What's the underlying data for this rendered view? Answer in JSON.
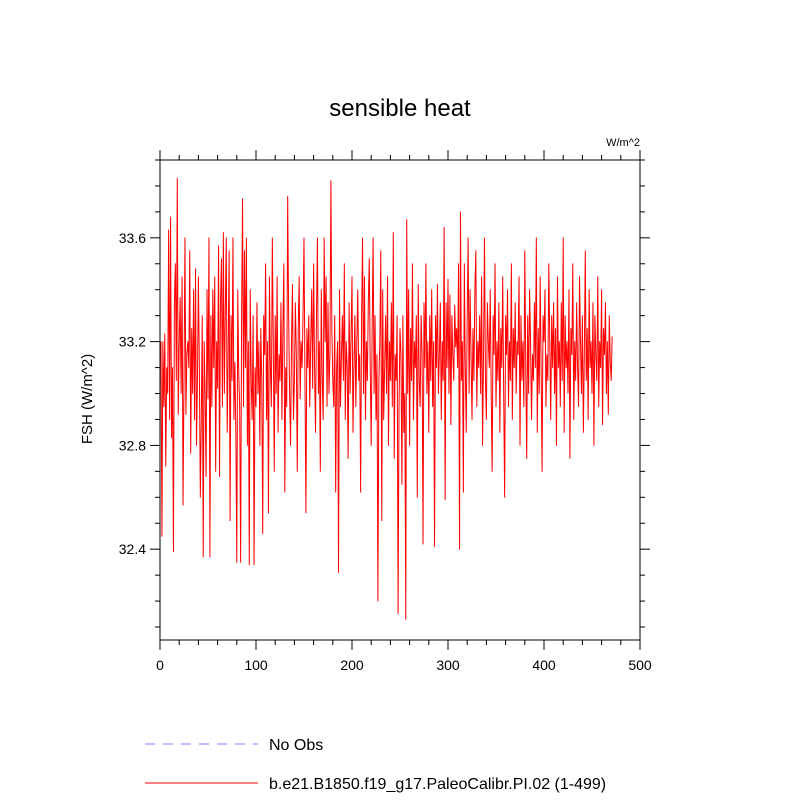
{
  "chart_data": {
    "type": "line",
    "title": "sensible heat",
    "units": "W/m^2",
    "xlabel": "",
    "ylabel": "FSH  (W/m^2)",
    "xlim": [
      0,
      500
    ],
    "ylim": [
      32.05,
      33.9
    ],
    "x_ticks": [
      0,
      100,
      200,
      300,
      400,
      500
    ],
    "x_tick_labels": [
      "0",
      "100",
      "200",
      "300",
      "400",
      "500"
    ],
    "y_ticks": [
      32.4,
      32.8,
      33.2,
      33.6
    ],
    "y_tick_labels": [
      "32.4",
      "32.8",
      "33.2",
      "33.6"
    ],
    "grid": false,
    "legend_position": "bottom",
    "legend": [
      {
        "label": "No Obs",
        "color": "#8080ff",
        "style": "dashed"
      },
      {
        "label": "b.e21.B1850.f19_g17.PaleoCalibr.PI.02 (1-499)",
        "color": "#ff0000",
        "style": "solid"
      }
    ],
    "series": [
      {
        "name": "b.e21.B1850.f19_g17.PaleoCalibr.PI.02 (1-499)",
        "color": "#ff0000",
        "x_start": 1,
        "x_step": 1,
        "values": [
          33.2,
          32.45,
          33.2,
          32.95,
          33.23,
          32.72,
          33.1,
          33.0,
          33.63,
          32.9,
          33.68,
          32.83,
          33.1,
          32.39,
          33.35,
          33.5,
          33.05,
          33.83,
          32.92,
          33.2,
          33.37,
          33.0,
          33.45,
          32.57,
          33.05,
          33.6,
          32.92,
          33.15,
          33.2,
          33.1,
          33.55,
          32.77,
          33.25,
          33.0,
          33.4,
          32.9,
          33.48,
          32.8,
          33.05,
          33.45,
          33.1,
          32.6,
          32.9,
          33.3,
          32.37,
          33.2,
          33.0,
          32.68,
          33.4,
          32.98,
          33.6,
          32.37,
          33.3,
          32.95,
          33.4,
          33.1,
          33.45,
          32.7,
          33.2,
          33.02,
          33.57,
          32.68,
          33.35,
          33.52,
          32.95,
          33.62,
          33.0,
          33.3,
          33.6,
          32.85,
          33.15,
          33.55,
          32.51,
          33.3,
          33.05,
          33.6,
          32.9,
          33.12,
          32.85,
          32.35,
          33.4,
          33.08,
          32.95,
          32.35,
          33.3,
          33.75,
          32.95,
          33.55,
          33.1,
          33.6,
          32.8,
          33.2,
          32.34,
          33.4,
          33.05,
          32.9,
          33.3,
          32.34,
          33.1,
          32.95,
          33.35,
          33.0,
          33.2,
          32.8,
          33.25,
          33.05,
          32.46,
          33.3,
          33.15,
          33.5,
          32.9,
          33.2,
          32.54,
          33.45,
          33.1,
          32.95,
          33.6,
          33.2,
          32.7,
          33.3,
          33.0,
          33.45,
          32.85,
          33.15,
          33.05,
          33.35,
          32.9,
          33.25,
          33.5,
          32.62,
          33.1,
          32.95,
          33.76,
          33.3,
          33.0,
          32.8,
          33.2,
          33.42,
          32.9,
          33.05,
          33.35,
          33.15,
          32.7,
          33.25,
          33.45,
          32.98,
          33.2,
          33.1,
          33.3,
          33.6,
          33.05,
          32.54,
          33.25,
          33.1,
          33.3,
          32.95,
          33.2,
          33.4,
          33.02,
          33.5,
          33.1,
          32.85,
          33.3,
          33.6,
          33.0,
          33.2,
          32.7,
          33.4,
          33.05,
          32.9,
          33.6,
          33.2,
          33.45,
          32.95,
          33.35,
          33.0,
          33.15,
          33.82,
          33.25,
          33.05,
          32.95,
          33.3,
          32.62,
          33.1,
          33.2,
          32.31,
          33.4,
          32.95,
          33.15,
          33.3,
          33.05,
          33.5,
          32.9,
          33.2,
          33.1,
          32.75,
          33.35,
          33.0,
          33.22,
          33.45,
          32.85,
          33.1,
          33.3,
          32.95,
          33.2,
          33.4,
          33.05,
          33.15,
          32.62,
          33.3,
          33.6,
          33.0,
          33.45,
          32.9,
          33.2,
          33.05,
          33.35,
          33.52,
          33.1,
          32.8,
          33.25,
          33.6,
          33.0,
          33.3,
          32.9,
          33.15,
          32.2,
          33.05,
          33.2,
          33.55,
          32.51,
          33.4,
          32.9,
          33.1,
          33.3,
          33.0,
          33.45,
          32.8,
          33.2,
          33.05,
          33.35,
          32.95,
          33.62,
          32.75,
          33.15,
          33.05,
          33.3,
          32.15,
          32.95,
          33.25,
          33.15,
          32.65,
          33.3,
          32.85,
          33.0,
          32.13,
          33.67,
          33.0,
          33.4,
          32.8,
          33.25,
          33.05,
          33.5,
          32.9,
          33.2,
          33.1,
          33.3,
          32.6,
          33.42,
          33.05,
          32.95,
          33.3,
          33.15,
          32.42,
          33.35,
          33.1,
          33.5,
          33.0,
          33.2,
          32.85,
          33.3,
          33.05,
          33.4,
          32.95,
          33.2,
          32.41,
          33.3,
          33.1,
          33.42,
          33.0,
          33.15,
          33.35,
          32.9,
          33.2,
          33.05,
          33.64,
          32.59,
          33.35,
          33.1,
          33.44,
          33.0,
          33.38,
          32.88,
          33.3,
          33.15,
          33.05,
          33.34,
          33.18,
          33.25,
          33.1,
          33.5,
          32.4,
          33.7,
          33.05,
          33.2,
          32.62,
          33.5,
          33.1,
          32.85,
          33.3,
          33.6,
          33.0,
          33.4,
          33.15,
          32.9,
          33.25,
          33.05,
          33.4,
          33.55,
          32.95,
          33.2,
          33.1,
          33.3,
          33.0,
          33.45,
          32.8,
          33.15,
          33.6,
          33.05,
          32.9,
          33.35,
          33.2,
          33.1,
          33.4,
          33.0,
          32.7,
          33.3,
          33.15,
          33.5,
          32.95,
          33.2,
          33.05,
          33.35,
          32.85,
          33.25,
          33.1,
          33.45,
          33.0,
          32.6,
          33.3,
          33.15,
          33.4,
          32.95,
          33.2,
          33.05,
          33.5,
          32.9,
          33.25,
          33.1,
          33.35,
          33.0,
          33.2,
          33.15,
          33.45,
          32.8,
          33.3,
          33.05,
          33.2,
          32.95,
          33.55,
          33.1,
          32.75,
          33.3,
          33.0,
          33.4,
          33.2,
          32.9,
          33.15,
          33.05,
          33.35,
          33.1,
          33.6,
          32.85,
          33.25,
          33.0,
          33.45,
          33.1,
          32.7,
          33.3,
          33.2,
          33.4,
          32.95,
          33.15,
          33.05,
          33.5,
          33.2,
          32.9,
          33.3,
          33.1,
          33.35,
          33.0,
          33.25,
          32.8,
          33.45,
          33.1,
          33.2,
          32.95,
          33.35,
          33.05,
          33.6,
          32.85,
          33.3,
          33.1,
          33.2,
          33.0,
          33.4,
          32.75,
          33.25,
          33.15,
          33.5,
          32.9,
          33.2,
          33.05,
          33.35,
          33.1,
          32.95,
          33.45,
          33.2,
          33.0,
          33.3,
          32.85,
          33.15,
          33.55,
          33.05,
          33.25,
          32.9,
          33.4,
          33.1,
          33.2,
          33.0,
          33.35,
          32.8,
          33.3,
          33.15,
          33.05,
          33.45,
          32.95,
          33.2,
          33.1,
          33.4,
          32.88,
          33.25,
          33.15,
          33.35,
          33.0,
          33.2,
          32.92,
          33.3,
          33.12,
          33.05,
          33.22
        ]
      }
    ]
  }
}
